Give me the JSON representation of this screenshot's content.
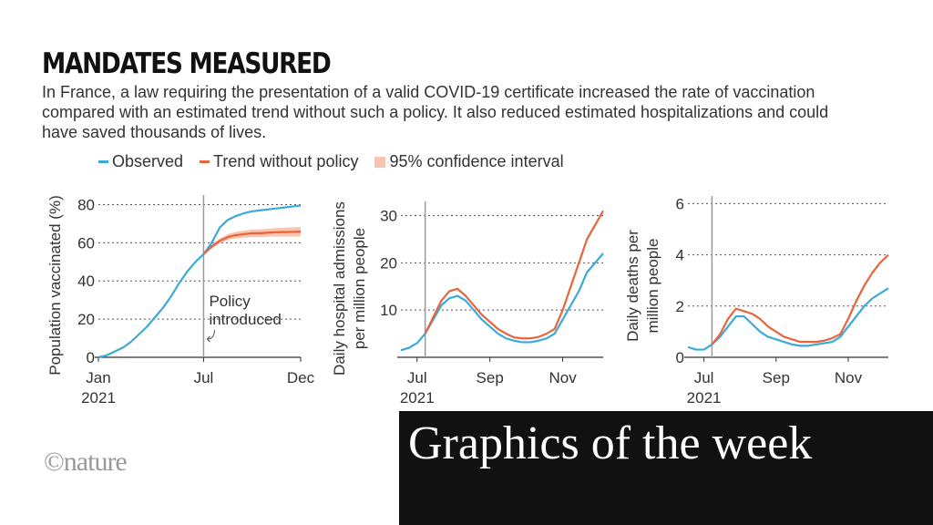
{
  "header": {
    "title": "MANDATES MEASURED",
    "subtitle": "In France, a law requiring the presentation of a valid COVID-19 certificate increased the rate of vaccination compared with an estimated trend without such a policy. It also reduced estimated hospitalizations and could have saved thousands of lives."
  },
  "branding": {
    "logo": "©nature",
    "banner": "Graphics of the week"
  },
  "chart_data": [
    {
      "type": "line",
      "ylabel": [
        "Population vaccinated (%)"
      ],
      "year_label": "2021",
      "annotation": [
        "Policy",
        "introduced"
      ],
      "categories": [
        "Jan",
        null,
        null,
        null,
        null,
        null,
        null,
        null,
        null,
        null,
        null,
        null,
        null,
        "Jul",
        null,
        null,
        null,
        null,
        null,
        null,
        null,
        null,
        null,
        null,
        null,
        "Dec"
      ],
      "ylim": [
        0,
        85
      ],
      "yticks": [
        0,
        20,
        40,
        60,
        80
      ],
      "grid": true,
      "series": [
        {
          "name": "Observed",
          "color": "#3aaad8",
          "values": [
            0,
            1,
            3,
            5,
            8,
            12,
            16,
            21,
            26,
            32,
            39,
            45,
            50,
            54,
            60,
            68,
            72,
            74,
            75.5,
            76.5,
            77,
            77.5,
            78,
            78.5,
            79,
            79.5
          ]
        },
        {
          "name": "Trend without policy",
          "color": "#e8643a",
          "values": [
            null,
            null,
            null,
            null,
            null,
            null,
            null,
            null,
            null,
            null,
            null,
            null,
            null,
            54,
            58,
            61,
            63,
            64,
            64.5,
            65,
            65,
            65.3,
            65.5,
            65.6,
            65.7,
            65.8
          ]
        },
        {
          "name": "95% confidence interval",
          "color": "#f7c4ae",
          "lower": [
            null,
            null,
            null,
            null,
            null,
            null,
            null,
            null,
            null,
            null,
            null,
            null,
            null,
            53.5,
            57,
            59.7,
            61.5,
            62.3,
            62.7,
            63,
            63,
            63.2,
            63.3,
            63.3,
            63.3,
            63.3
          ],
          "upper": [
            null,
            null,
            null,
            null,
            null,
            null,
            null,
            null,
            null,
            null,
            null,
            null,
            null,
            54.5,
            59,
            62.3,
            64.5,
            65.7,
            66.3,
            67,
            67,
            67.4,
            67.7,
            67.9,
            68.1,
            68.3
          ]
        }
      ]
    },
    {
      "type": "line",
      "ylabel": [
        "Daily hospital admissions",
        "per million people"
      ],
      "year_label": "2021",
      "categories": [
        null,
        null,
        "Jul",
        null,
        null,
        null,
        null,
        null,
        null,
        null,
        null,
        "Sep",
        null,
        null,
        null,
        null,
        null,
        null,
        null,
        null,
        "Nov",
        null,
        null,
        null,
        null,
        null
      ],
      "ylim": [
        0,
        33
      ],
      "yticks": [
        10,
        20,
        30
      ],
      "grid": true,
      "series": [
        {
          "name": "Observed",
          "color": "#3aaad8",
          "values": [
            1.5,
            2,
            3,
            5,
            8,
            11,
            12.5,
            13,
            12,
            10,
            8,
            6.5,
            5,
            4,
            3.5,
            3.2,
            3.2,
            3.5,
            4,
            5,
            8,
            11,
            14,
            18,
            20,
            22
          ]
        },
        {
          "name": "Trend without policy",
          "color": "#e8643a",
          "values": [
            null,
            null,
            null,
            5,
            8.5,
            12,
            14,
            14.5,
            13,
            11,
            9,
            7.5,
            6,
            5,
            4.2,
            4,
            4,
            4.3,
            5,
            6,
            10,
            15,
            20,
            25,
            28,
            31
          ]
        }
      ]
    },
    {
      "type": "line",
      "ylabel": [
        "Daily deaths per",
        "million people"
      ],
      "year_label": "2021",
      "categories": [
        null,
        null,
        "Jul",
        null,
        null,
        null,
        null,
        null,
        null,
        null,
        null,
        "Sep",
        null,
        null,
        null,
        null,
        null,
        null,
        null,
        null,
        "Nov",
        null,
        null,
        null,
        null,
        null
      ],
      "ylim": [
        0,
        6.3
      ],
      "yticks": [
        0,
        2,
        4,
        6
      ],
      "grid": true,
      "series": [
        {
          "name": "Observed",
          "color": "#3aaad8",
          "values": [
            0.4,
            0.3,
            0.3,
            0.5,
            0.8,
            1.2,
            1.6,
            1.6,
            1.3,
            1.0,
            0.8,
            0.7,
            0.6,
            0.5,
            0.45,
            0.45,
            0.5,
            0.55,
            0.6,
            0.8,
            1.2,
            1.6,
            2.0,
            2.3,
            2.5,
            2.7
          ]
        },
        {
          "name": "Trend without policy",
          "color": "#e8643a",
          "values": [
            null,
            null,
            null,
            0.5,
            0.9,
            1.5,
            1.9,
            1.8,
            1.7,
            1.5,
            1.2,
            1.0,
            0.8,
            0.7,
            0.6,
            0.6,
            0.6,
            0.65,
            0.75,
            0.9,
            1.5,
            2.2,
            2.8,
            3.3,
            3.7,
            4.0
          ]
        }
      ]
    }
  ]
}
